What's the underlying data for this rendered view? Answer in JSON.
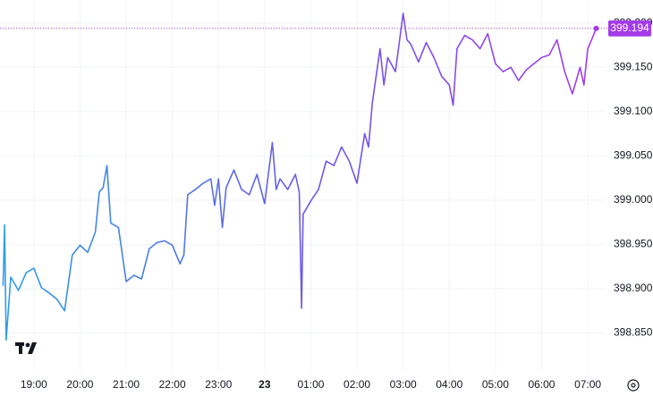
{
  "chart_data": {
    "type": "line",
    "x": [
      "18:20",
      "18:22",
      "18:24",
      "18:30",
      "18:40",
      "18:50",
      "19:00",
      "19:10",
      "19:20",
      "19:30",
      "19:40",
      "19:50",
      "20:00",
      "20:10",
      "20:20",
      "20:25",
      "20:30",
      "20:35",
      "20:40",
      "20:50",
      "21:00",
      "21:10",
      "21:20",
      "21:30",
      "21:40",
      "21:50",
      "22:00",
      "22:10",
      "22:15",
      "22:20",
      "22:30",
      "22:40",
      "22:50",
      "22:55",
      "23:00",
      "23:05",
      "23:10",
      "23:20",
      "23:30",
      "23:40",
      "23:50",
      "00:00",
      "00:10",
      "00:15",
      "00:20",
      "00:30",
      "00:40",
      "00:45",
      "00:48",
      "00:50",
      "01:00",
      "01:10",
      "01:20",
      "01:30",
      "01:40",
      "01:50",
      "02:00",
      "02:10",
      "02:15",
      "02:20",
      "02:30",
      "02:35",
      "02:40",
      "02:50",
      "03:00",
      "03:05",
      "03:10",
      "03:20",
      "03:30",
      "03:40",
      "03:50",
      "04:00",
      "04:05",
      "04:10",
      "04:20",
      "04:30",
      "04:40",
      "04:50",
      "05:00",
      "05:10",
      "05:20",
      "05:30",
      "05:40",
      "05:50",
      "06:00",
      "06:10",
      "06:20",
      "06:30",
      "06:40",
      "06:50",
      "06:55",
      "07:00",
      "07:05",
      "07:11"
    ],
    "series": [
      {
        "values": [
          398.903,
          398.972,
          398.842,
          398.913,
          398.898,
          398.918,
          398.923,
          398.901,
          398.895,
          398.888,
          398.875,
          398.938,
          398.949,
          398.941,
          398.964,
          399.009,
          399.014,
          399.039,
          398.974,
          398.969,
          398.908,
          398.915,
          398.911,
          398.945,
          398.952,
          398.954,
          398.949,
          398.928,
          398.938,
          399.006,
          399.012,
          399.019,
          399.024,
          398.994,
          399.024,
          398.969,
          399.014,
          399.034,
          399.012,
          399.006,
          399.029,
          398.996,
          399.065,
          399.012,
          399.024,
          399.012,
          399.029,
          399.009,
          398.878,
          398.984,
          398.999,
          399.012,
          399.044,
          399.039,
          399.06,
          399.044,
          399.019,
          399.075,
          399.06,
          399.11,
          399.171,
          399.13,
          399.161,
          399.145,
          399.211,
          399.181,
          399.176,
          399.156,
          399.178,
          399.161,
          399.14,
          399.13,
          399.107,
          399.171,
          399.186,
          399.181,
          399.171,
          399.188,
          399.154,
          399.145,
          399.15,
          399.135,
          399.147,
          399.154,
          399.161,
          399.164,
          399.181,
          399.145,
          399.12,
          399.15,
          399.13,
          399.171,
          399.181,
          399.194
        ],
        "colors": [
          "#2f9ee6",
          "#6b5be6",
          "#a43ce8"
        ]
      }
    ],
    "xlim": [
      "18:16",
      "07:22"
    ],
    "xticks": [
      "19:00",
      "20:00",
      "21:00",
      "22:00",
      "23:00",
      {
        "value": "00:00",
        "label": "23"
      },
      "01:00",
      "02:00",
      "03:00",
      "04:00",
      "05:00",
      "06:00",
      "07:00"
    ],
    "ylim": [
      398.807,
      399.226
    ],
    "yticks": [
      {
        "value": 398.85,
        "label": "398.850"
      },
      {
        "value": 398.9,
        "label": "398.900"
      },
      {
        "value": 398.95,
        "label": "398.950"
      },
      {
        "value": 399,
        "label": "399.000"
      },
      {
        "value": 399.05,
        "label": "399.050"
      },
      {
        "value": 399.1,
        "label": "399.100"
      },
      {
        "value": 399.15,
        "label": "399.150"
      },
      {
        "value": 399.2,
        "label": "399.200"
      }
    ],
    "grid": true,
    "last_value_color": "#a43ce8"
  }
}
